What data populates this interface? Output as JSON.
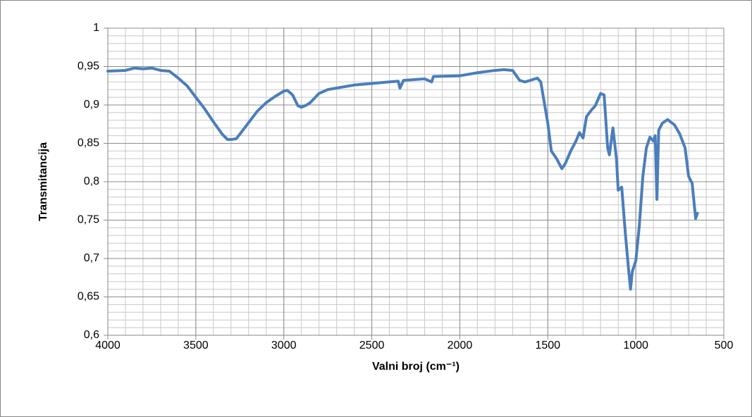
{
  "chart_data": {
    "type": "line",
    "xlabel": "Valni broj (cm⁻¹)",
    "ylabel": "Transmitancija",
    "xlim": [
      4000,
      500
    ],
    "xticks": [
      4000,
      3500,
      3000,
      2500,
      2000,
      1500,
      1000,
      500
    ],
    "ylim": [
      0.6,
      1
    ],
    "yticks": [
      {
        "value": 0.6,
        "label": "0,6"
      },
      {
        "value": 0.65,
        "label": "0,65"
      },
      {
        "value": 0.7,
        "label": "0,7"
      },
      {
        "value": 0.75,
        "label": "0,75"
      },
      {
        "value": 0.8,
        "label": "0,8"
      },
      {
        "value": 0.85,
        "label": "0,85"
      },
      {
        "value": 0.9,
        "label": "0,9"
      },
      {
        "value": 0.95,
        "label": "0,95"
      },
      1
    ],
    "grid": true,
    "minor_grid": {
      "x": 100,
      "y": 0.01
    },
    "series": [
      {
        "color": "#4a7ebb",
        "x": [
          4000,
          3900,
          3850,
          3800,
          3750,
          3700,
          3650,
          3600,
          3550,
          3500,
          3450,
          3400,
          3350,
          3320,
          3300,
          3270,
          3250,
          3200,
          3150,
          3100,
          3050,
          3000,
          2980,
          2950,
          2920,
          2900,
          2870,
          2850,
          2800,
          2750,
          2700,
          2600,
          2500,
          2400,
          2350,
          2340,
          2320,
          2200,
          2160,
          2150,
          2000,
          1900,
          1800,
          1750,
          1700,
          1660,
          1630,
          1600,
          1560,
          1540,
          1500,
          1480,
          1450,
          1420,
          1400,
          1370,
          1340,
          1320,
          1300,
          1280,
          1250,
          1230,
          1200,
          1180,
          1160,
          1150,
          1130,
          1110,
          1100,
          1080,
          1060,
          1040,
          1030,
          1020,
          1000,
          980,
          960,
          940,
          920,
          900,
          890,
          880,
          870,
          850,
          820,
          780,
          750,
          720,
          700,
          680,
          660,
          650
        ],
        "values": [
          0.944,
          0.945,
          0.948,
          0.947,
          0.948,
          0.945,
          0.944,
          0.935,
          0.925,
          0.91,
          0.895,
          0.878,
          0.862,
          0.855,
          0.855,
          0.856,
          0.862,
          0.877,
          0.892,
          0.903,
          0.911,
          0.918,
          0.919,
          0.913,
          0.899,
          0.897,
          0.9,
          0.903,
          0.915,
          0.92,
          0.922,
          0.926,
          0.928,
          0.93,
          0.931,
          0.922,
          0.932,
          0.934,
          0.93,
          0.937,
          0.938,
          0.942,
          0.945,
          0.946,
          0.945,
          0.932,
          0.93,
          0.932,
          0.935,
          0.93,
          0.876,
          0.84,
          0.83,
          0.817,
          0.824,
          0.84,
          0.853,
          0.864,
          0.857,
          0.885,
          0.894,
          0.899,
          0.915,
          0.913,
          0.844,
          0.835,
          0.87,
          0.83,
          0.789,
          0.793,
          0.734,
          0.683,
          0.66,
          0.683,
          0.697,
          0.743,
          0.807,
          0.844,
          0.858,
          0.853,
          0.86,
          0.777,
          0.867,
          0.876,
          0.881,
          0.874,
          0.862,
          0.844,
          0.807,
          0.798,
          0.752,
          0.759
        ]
      }
    ]
  }
}
